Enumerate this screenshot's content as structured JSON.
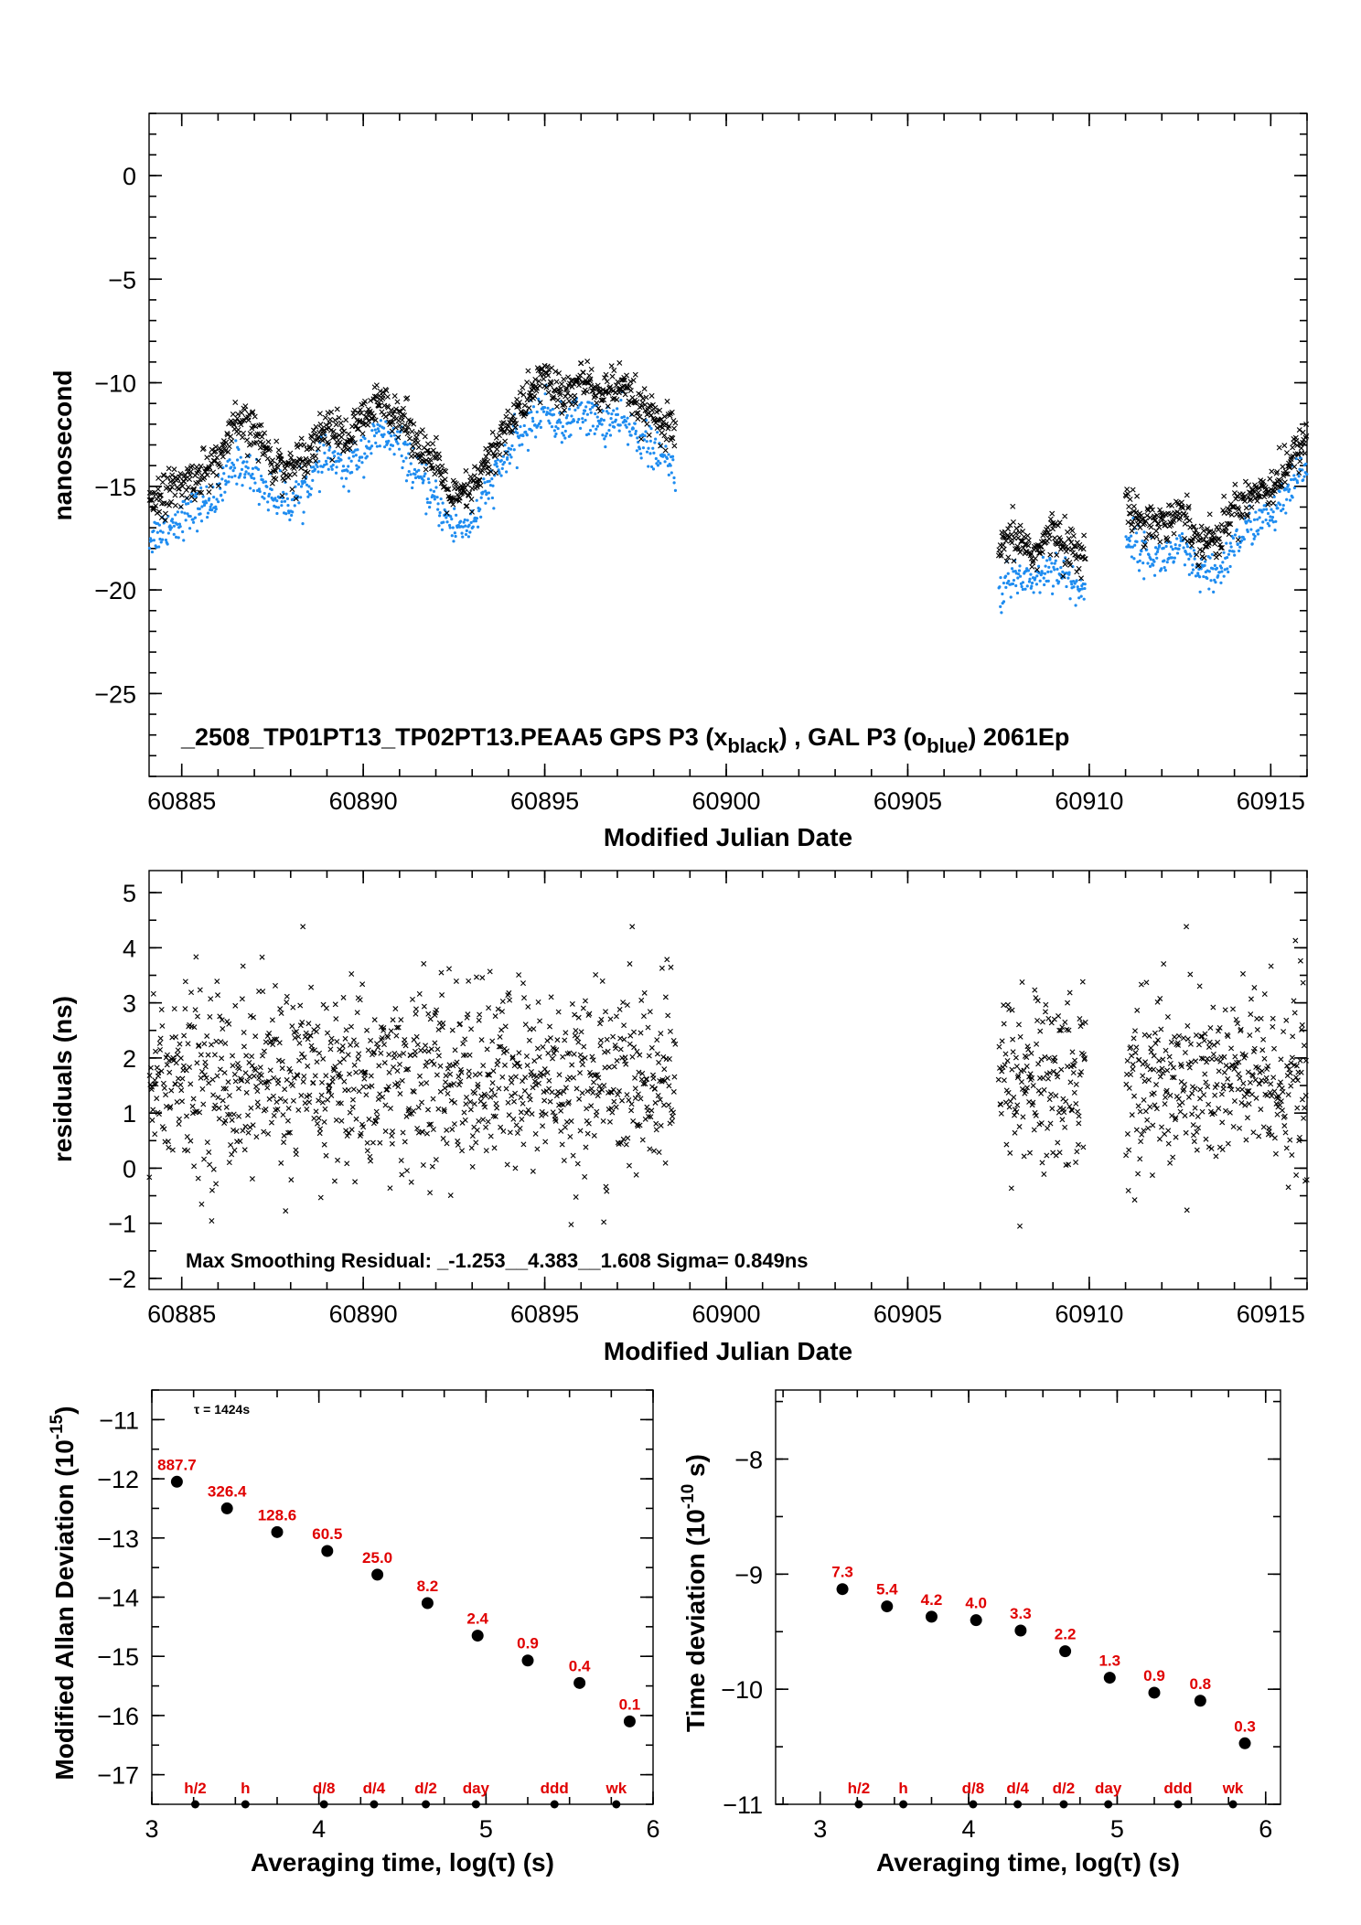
{
  "chart_data": [
    {
      "type": "scatter",
      "xlabel": "Modified Julian Date",
      "ylabel": "nanosecond",
      "xlim": [
        60884.1,
        60916.0
      ],
      "ylim": [
        -29,
        3
      ],
      "xticks": [
        60885,
        60890,
        60895,
        60900,
        60905,
        60910,
        60915
      ],
      "yticks": [
        0,
        -5,
        -10,
        -15,
        -20,
        -25
      ],
      "annotation": {
        "prefix": "_2508_TP01PT13_TP02PT13.PEAA5    GPS P3 (x",
        "sub1": "black",
        "mid": ") ,  GAL P3 (o",
        "sub2": "blue",
        "suffix": ")  2061Ep"
      },
      "segments": [
        {
          "start": 60884.1,
          "end": 60898.6
        },
        {
          "start": 60907.5,
          "end": 60909.9
        },
        {
          "start": 60911.0,
          "end": 60916.0
        }
      ],
      "series": [
        {
          "marker": "x",
          "color": "#000000",
          "trend": [
            [
              60884.1,
              -15.6
            ],
            [
              60885,
              -15.0
            ],
            [
              60886,
              -13.8
            ],
            [
              60886.5,
              -12.0
            ],
            [
              60887,
              -12.3
            ],
            [
              60887.5,
              -13.8
            ],
            [
              60888,
              -14.2
            ],
            [
              60888.5,
              -13.2
            ],
            [
              60889,
              -12.0
            ],
            [
              60889.5,
              -12.8
            ],
            [
              60890,
              -11.8
            ],
            [
              60890.5,
              -10.9
            ],
            [
              60891,
              -11.5
            ],
            [
              60891.5,
              -12.8
            ],
            [
              60892,
              -14.0
            ],
            [
              60892.5,
              -15.7
            ],
            [
              60893,
              -15.2
            ],
            [
              60893.5,
              -13.6
            ],
            [
              60894,
              -12.0
            ],
            [
              60894.5,
              -10.8
            ],
            [
              60895,
              -9.6
            ],
            [
              60895.5,
              -10.8
            ],
            [
              60896,
              -9.8
            ],
            [
              60896.5,
              -10.5
            ],
            [
              60897,
              -10.2
            ],
            [
              60897.5,
              -10.9
            ],
            [
              60898,
              -11.8
            ],
            [
              60898.6,
              -12.5
            ],
            [
              60907.5,
              -18.2
            ],
            [
              60908,
              -17.4
            ],
            [
              60908.5,
              -18.3
            ],
            [
              60909,
              -17.2
            ],
            [
              60909.5,
              -18.0
            ],
            [
              60909.9,
              -18.3
            ],
            [
              60911,
              -16.0
            ],
            [
              60911.5,
              -16.6
            ],
            [
              60912,
              -16.8
            ],
            [
              60912.5,
              -16.2
            ],
            [
              60913,
              -17.5
            ],
            [
              60913.5,
              -17.6
            ],
            [
              60914,
              -16.0
            ],
            [
              60914.5,
              -15.3
            ],
            [
              60915,
              -15.0
            ],
            [
              60915.5,
              -14.0
            ],
            [
              60916,
              -12.5
            ]
          ],
          "spread": 0.85,
          "points_per_day": 60
        },
        {
          "marker": "o",
          "color": "#1e8cf0",
          "trend": [
            [
              60884.1,
              -17.5
            ],
            [
              60885,
              -16.5
            ],
            [
              60886,
              -15.5
            ],
            [
              60886.5,
              -13.8
            ],
            [
              60887,
              -14.5
            ],
            [
              60887.5,
              -15.5
            ],
            [
              60888,
              -15.8
            ],
            [
              60888.5,
              -14.8
            ],
            [
              60889,
              -13.5
            ],
            [
              60889.5,
              -14.3
            ],
            [
              60890,
              -13.2
            ],
            [
              60890.5,
              -12.5
            ],
            [
              60891,
              -13.0
            ],
            [
              60891.5,
              -14.5
            ],
            [
              60892,
              -15.8
            ],
            [
              60892.5,
              -17.0
            ],
            [
              60893,
              -16.8
            ],
            [
              60893.5,
              -15.0
            ],
            [
              60894,
              -13.4
            ],
            [
              60894.5,
              -12.2
            ],
            [
              60895,
              -11.2
            ],
            [
              60895.5,
              -12.2
            ],
            [
              60896,
              -11.3
            ],
            [
              60896.5,
              -12.0
            ],
            [
              60897,
              -11.8
            ],
            [
              60897.5,
              -12.4
            ],
            [
              60898,
              -13.3
            ],
            [
              60898.6,
              -14.2
            ],
            [
              60907.5,
              -20.3
            ],
            [
              60908,
              -19.3
            ],
            [
              60908.5,
              -19.5
            ],
            [
              60909,
              -18.8
            ],
            [
              60909.5,
              -19.6
            ],
            [
              60909.9,
              -20.2
            ],
            [
              60911,
              -17.3
            ],
            [
              60911.5,
              -18.2
            ],
            [
              60912,
              -18.5
            ],
            [
              60912.5,
              -18.0
            ],
            [
              60913,
              -19.2
            ],
            [
              60913.5,
              -19.4
            ],
            [
              60914,
              -17.8
            ],
            [
              60914.5,
              -16.8
            ],
            [
              60915,
              -16.5
            ],
            [
              60915.5,
              -15.4
            ],
            [
              60916,
              -13.8
            ]
          ],
          "spread": 0.8,
          "points_per_day": 55
        }
      ]
    },
    {
      "type": "scatter",
      "xlabel": "Modified Julian Date",
      "ylabel": "residuals (ns)",
      "xlim": [
        60884.1,
        60916.0
      ],
      "ylim": [
        -2.2,
        5.4
      ],
      "xticks": [
        60885,
        60890,
        60895,
        60900,
        60905,
        60910,
        60915
      ],
      "yticks": [
        5,
        4,
        3,
        2,
        1,
        0,
        -1,
        -2
      ],
      "annotation": "Max Smoothing Residual: _-1.253__4.383__1.608  Sigma= 0.849ns",
      "segments": [
        {
          "start": 60884.1,
          "end": 60898.6
        },
        {
          "start": 60907.5,
          "end": 60909.9
        },
        {
          "start": 60911.0,
          "end": 60916.0
        }
      ],
      "series": [
        {
          "marker": "x",
          "color": "#000000",
          "center": 1.6,
          "sigma": 0.849,
          "min": -1.253,
          "max": 4.383,
          "points_per_day": 70
        }
      ]
    },
    {
      "type": "scatter",
      "xlabel": "Averaging time, log(τ) (s)",
      "ylabel_main": "Modified Allan Deviation (10",
      "ylabel_sup": "-15",
      "ylabel_end": ")",
      "xlim": [
        3,
        6
      ],
      "ylim": [
        -17.5,
        -10.5
      ],
      "xticks": [
        3,
        4,
        5,
        6
      ],
      "yticks": [
        -11,
        -12,
        -13,
        -14,
        -15,
        -16,
        -17
      ],
      "tau_note": "τ = 1424s",
      "points": [
        {
          "x": 3.15,
          "y": -12.05,
          "label": "887.7"
        },
        {
          "x": 3.45,
          "y": -12.5,
          "label": "326.4"
        },
        {
          "x": 3.75,
          "y": -12.9,
          "label": "128.6"
        },
        {
          "x": 4.05,
          "y": -13.22,
          "label": "60.5"
        },
        {
          "x": 4.35,
          "y": -13.62,
          "label": "25.0"
        },
        {
          "x": 4.65,
          "y": -14.1,
          "label": "8.2"
        },
        {
          "x": 4.95,
          "y": -14.65,
          "label": "2.4"
        },
        {
          "x": 5.25,
          "y": -15.07,
          "label": "0.9"
        },
        {
          "x": 5.56,
          "y": -15.45,
          "label": "0.4"
        },
        {
          "x": 5.86,
          "y": -16.1,
          "label": "0.1"
        }
      ],
      "time_markers": [
        {
          "x": 3.26,
          "label": "h/2"
        },
        {
          "x": 3.56,
          "label": "h"
        },
        {
          "x": 4.03,
          "label": "d/8"
        },
        {
          "x": 4.33,
          "label": "d/4"
        },
        {
          "x": 4.64,
          "label": "d/2"
        },
        {
          "x": 4.94,
          "label": "day"
        },
        {
          "x": 5.41,
          "label": "ddd"
        },
        {
          "x": 5.78,
          "label": "wk"
        }
      ]
    },
    {
      "type": "scatter",
      "xlabel": "Averaging time, log(τ) (s)",
      "ylabel_main": "Time deviation (10",
      "ylabel_sup": "-10",
      "ylabel_end": " s)",
      "xlim": [
        2.7,
        6.1
      ],
      "ylim": [
        -11,
        -7.4
      ],
      "xticks": [
        3,
        4,
        5,
        6
      ],
      "yticks": [
        -8,
        -9,
        -10,
        -11
      ],
      "points": [
        {
          "x": 3.15,
          "y": -9.13,
          "label": "7.3"
        },
        {
          "x": 3.45,
          "y": -9.28,
          "label": "5.4"
        },
        {
          "x": 3.75,
          "y": -9.37,
          "label": "4.2"
        },
        {
          "x": 4.05,
          "y": -9.4,
          "label": "4.0"
        },
        {
          "x": 4.35,
          "y": -9.49,
          "label": "3.3"
        },
        {
          "x": 4.65,
          "y": -9.67,
          "label": "2.2"
        },
        {
          "x": 4.95,
          "y": -9.9,
          "label": "1.3"
        },
        {
          "x": 5.25,
          "y": -10.03,
          "label": "0.9"
        },
        {
          "x": 5.56,
          "y": -10.1,
          "label": "0.8"
        },
        {
          "x": 5.86,
          "y": -10.47,
          "label": "0.3"
        }
      ],
      "time_markers": [
        {
          "x": 3.26,
          "label": "h/2"
        },
        {
          "x": 3.56,
          "label": "h"
        },
        {
          "x": 4.03,
          "label": "d/8"
        },
        {
          "x": 4.33,
          "label": "d/4"
        },
        {
          "x": 4.64,
          "label": "d/2"
        },
        {
          "x": 4.94,
          "label": "day"
        },
        {
          "x": 5.41,
          "label": "ddd"
        },
        {
          "x": 5.78,
          "label": "wk"
        }
      ]
    }
  ]
}
